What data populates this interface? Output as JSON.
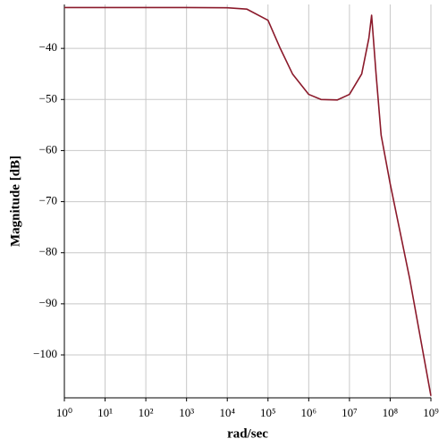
{
  "chart_data": {
    "type": "line",
    "x_label": "rad/sec",
    "y_label": "Magnitude [dB]",
    "x_log": true,
    "grid": true,
    "xlim": [
      1,
      1000000000
    ],
    "ylim": [
      -108.4,
      -31.4
    ],
    "xticks": [
      {
        "value": 1,
        "label": "10⁰"
      },
      {
        "value": 10,
        "label": "10¹"
      },
      {
        "value": 100,
        "label": "10²"
      },
      {
        "value": 1000,
        "label": "10³"
      },
      {
        "value": 10000,
        "label": "10⁴"
      },
      {
        "value": 100000,
        "label": "10⁵"
      },
      {
        "value": 1000000,
        "label": "10⁶"
      },
      {
        "value": 10000000,
        "label": "10⁷"
      },
      {
        "value": 100000000,
        "label": "10⁸"
      },
      {
        "value": 1000000000,
        "label": "10⁹"
      }
    ],
    "yticks": [
      {
        "value": -40,
        "label": "−40"
      },
      {
        "value": -50,
        "label": "−50"
      },
      {
        "value": -60,
        "label": "−60"
      },
      {
        "value": -70,
        "label": "−70"
      },
      {
        "value": -80,
        "label": "−80"
      },
      {
        "value": -90,
        "label": "−90"
      },
      {
        "value": -100,
        "label": "−100"
      }
    ],
    "x": [
      1,
      100,
      1000,
      10000,
      30000,
      100000,
      200000,
      400000,
      1000000,
      2000000,
      5000000,
      10000000,
      20000000,
      30000000,
      35000000,
      45000000,
      60000000,
      100000000,
      300000000,
      1000000000
    ],
    "series": [
      {
        "color": "#8b1a2b",
        "values": [
          -32,
          -32,
          -32,
          -32.05,
          -32.3,
          -34.5,
          -40,
          -45,
          -49,
          -50,
          -50.1,
          -49,
          -45,
          -38,
          -33.5,
          -45,
          -57,
          -66.5,
          -85,
          -108
        ]
      }
    ]
  }
}
